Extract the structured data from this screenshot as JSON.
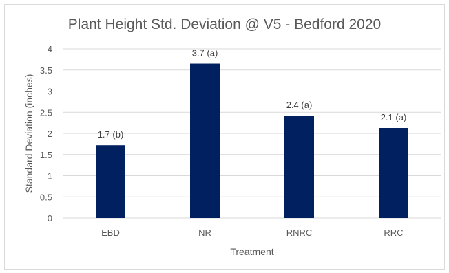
{
  "chart_data": {
    "type": "bar",
    "title": "Plant Height Std. Deviation @ V5 - Bedford 2020",
    "xlabel": "Treatment",
    "ylabel": "Standard Deviation (inches)",
    "categories": [
      "EBD",
      "NR",
      "RNRC",
      "RRC"
    ],
    "values": [
      1.72,
      3.65,
      2.42,
      2.13
    ],
    "data_labels": [
      "1.7 (b)",
      "3.7 (a)",
      "2.4 (a)",
      "2.1 (a)"
    ],
    "ylim": [
      0,
      4
    ],
    "yticks": [
      "0",
      "0.5",
      "1",
      "1.5",
      "2",
      "2.5",
      "3",
      "3.5",
      "4"
    ],
    "grid": true,
    "legend": "none",
    "bar_color": "#002060",
    "grid_color": "#d9d9d9"
  }
}
